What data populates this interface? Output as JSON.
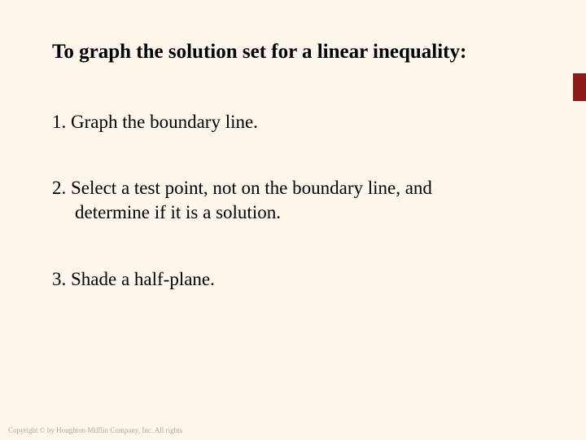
{
  "background_color": "#fdf6ea",
  "accent_color": "#8f1a1a",
  "text_color": "#000000",
  "font_family": "Times New Roman",
  "title": {
    "text": "To graph the solution set for a linear inequality:",
    "fontsize": 25,
    "bold": true
  },
  "items": [
    {
      "number": "1.",
      "text_line1": "1. Graph the boundary line.",
      "text_line2": ""
    },
    {
      "number": "2.",
      "text_line1": "2. Select a test point, not on the boundary line, and",
      "text_line2": "determine if it is a solution."
    },
    {
      "number": "3.",
      "text_line1": "3. Shade a half-plane.",
      "text_line2": ""
    }
  ],
  "copyright": "Copyright © by Houghton Mifflin Company, Inc. All rights",
  "page_hint": ""
}
